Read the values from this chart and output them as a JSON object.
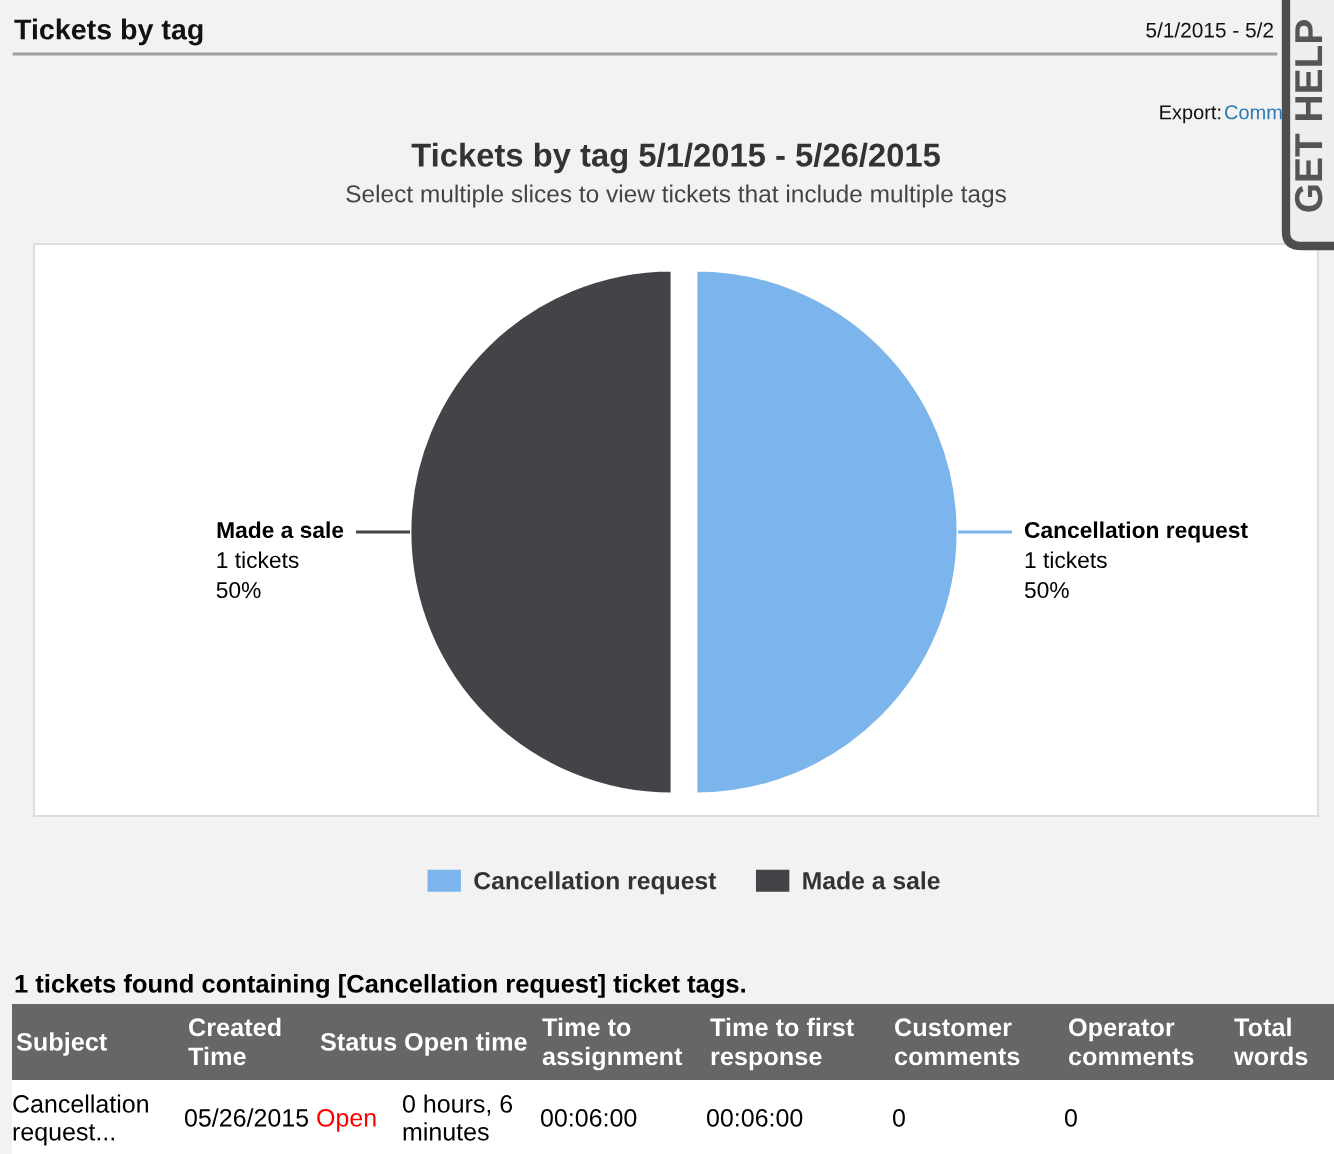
{
  "chart_data": [
    {
      "type": "pie",
      "title": "Tickets by tag 5/1/2015 - 5/26/2015",
      "subtitle": "Select multiple slices to view tickets that include multiple tags",
      "categories": [
        "Cancellation request",
        "Made a sale"
      ],
      "values": [
        1,
        1
      ],
      "colors": [
        "#7cb5ec",
        "#434348"
      ],
      "value_labels": [
        "1 tickets\n50%",
        "1 tickets\n50%"
      ],
      "legend": "bottom",
      "annotations": [
        "Tickets by tag",
        "5/1/2015 - 5/2",
        "Export:",
        "Comm",
        "GET HELP"
      ]
    },
    {
      "type": "other",
      "title": "1 tickets found containing [Cancellation request] ticket tags.",
      "categories": [
        "Subject",
        "Created\nTime",
        "Status",
        "Open time",
        "Time to\nassignment",
        "Time to first\nresponse",
        "Customer\ncomments",
        "Operator\ncomments",
        "Total\nwords"
      ],
      "annotations": [
        "Cancellation\nrequest...",
        "05/26/2015",
        "Open",
        "0 hours, 6\nminutes",
        "00:06:00",
        "00:06:00",
        "0",
        "0"
      ]
    }
  ]
}
